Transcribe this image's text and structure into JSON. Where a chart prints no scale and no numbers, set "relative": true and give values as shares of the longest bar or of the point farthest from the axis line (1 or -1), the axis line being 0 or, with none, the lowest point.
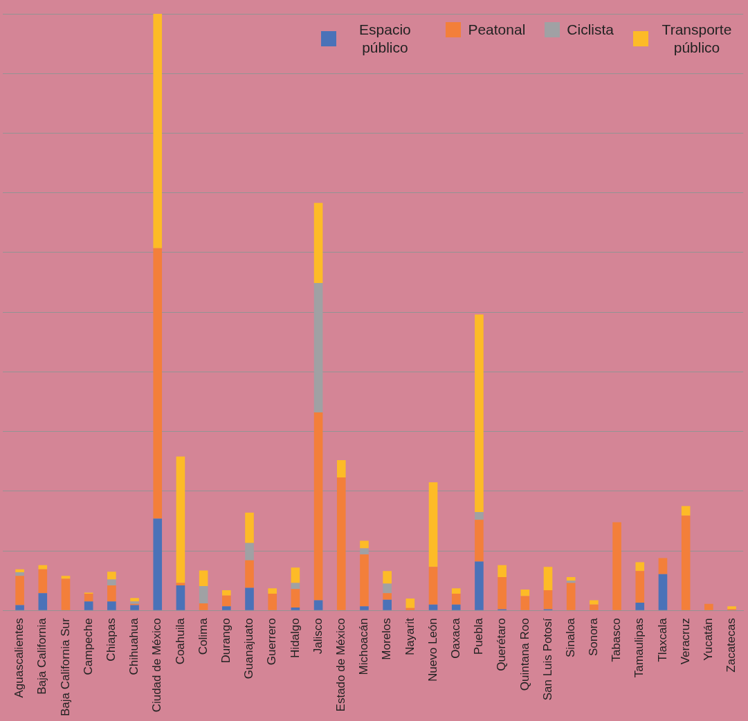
{
  "chart_data": {
    "type": "bar",
    "stacked": true,
    "relative": true,
    "grid": "y",
    "legend": "top right",
    "categories": [
      "Aguascalientes",
      "Baja California",
      "Baja California Sur",
      "Campeche",
      "Chiapas",
      "Chihuahua",
      "Ciudad de México",
      "Coahuila",
      "Colima",
      "Durango",
      "Guanajuato",
      "Guerrero",
      "Hidalgo",
      "Jalisco",
      "Estado de México",
      "Michoacán",
      "Morelos",
      "Nayarit",
      "Nuevo León",
      "Oaxaca",
      "Puebla",
      "Querétaro",
      "Quintana Roo",
      "San Luis Potosí",
      "Sinaloa",
      "Sonora",
      "Tabasco",
      "Tamaulipas",
      "Tlaxcala",
      "Veracruz",
      "Yucatán",
      "Zacatecas"
    ],
    "series": [
      {
        "name": "Espacio público",
        "color": "#4a72b8",
        "values": [
          0.009,
          0.029,
          0,
          0.015,
          0.015,
          0.009,
          0.154,
          0.042,
          0,
          0.007,
          0.038,
          0,
          0.005,
          0.017,
          0,
          0.007,
          0.018,
          0,
          0.01,
          0.01,
          0.082,
          0.002,
          0,
          0.002,
          0,
          0,
          0,
          0.013,
          0.061,
          0,
          0,
          0
        ]
      },
      {
        "name": "Peatonal",
        "color": "#f37f3a",
        "values": [
          0.049,
          0.04,
          0.053,
          0.013,
          0.027,
          0.002,
          0.453,
          0.004,
          0.012,
          0.018,
          0.046,
          0.028,
          0.031,
          0.315,
          0.223,
          0.087,
          0.011,
          0.004,
          0.063,
          0.018,
          0.07,
          0.054,
          0.024,
          0.032,
          0.046,
          0.01,
          0.148,
          0.053,
          0.027,
          0.159,
          0.011,
          0.002
        ]
      },
      {
        "name": "Ciclista",
        "color": "#a0a1a4",
        "values": [
          0.006,
          0,
          0,
          0,
          0.01,
          0.004,
          0,
          0,
          0.029,
          0,
          0.029,
          0,
          0.01,
          0.217,
          0,
          0.01,
          0.016,
          0,
          0,
          0,
          0.013,
          0,
          0,
          0,
          0.004,
          0,
          0,
          0,
          0,
          0,
          0,
          0
        ]
      },
      {
        "name": "Transporte público",
        "color": "#fdbb27",
        "values": [
          0.005,
          0.007,
          0.005,
          0.002,
          0.013,
          0.006,
          0.393,
          0.212,
          0.026,
          0.009,
          0.051,
          0.009,
          0.026,
          0.134,
          0.029,
          0.013,
          0.021,
          0.016,
          0.142,
          0.009,
          0.331,
          0.02,
          0.011,
          0.039,
          0.006,
          0.007,
          0,
          0.015,
          0,
          0.016,
          0,
          0.005
        ]
      }
    ]
  }
}
